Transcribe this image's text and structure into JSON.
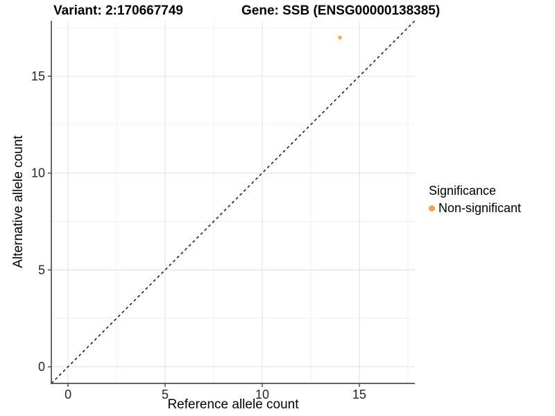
{
  "titles": {
    "variant": "Variant: 2:170667749",
    "gene": "Gene: SSB (ENSG00000138385)"
  },
  "chart_data": {
    "type": "scatter",
    "title_left": "Variant: 2:170667749",
    "title_right": "Gene: SSB (ENSG00000138385)",
    "xlabel": "Reference allele count",
    "ylabel": "Alternative allele count",
    "xlim": [
      -0.86,
      17.86
    ],
    "ylim": [
      -0.86,
      17.86
    ],
    "x_ticks": [
      0,
      5,
      10,
      15
    ],
    "y_ticks": [
      0,
      5,
      10,
      15
    ],
    "x_minor_ticks": [
      2.5,
      7.5,
      12.5,
      17.5
    ],
    "y_minor_ticks": [
      2.5,
      7.5,
      12.5,
      17.5
    ],
    "grid": "major-and-minor",
    "abline": {
      "slope": 1,
      "intercept": 0,
      "style": "dashed",
      "color": "#111111"
    },
    "series": [
      {
        "name": "Non-significant",
        "color": "#F9A242",
        "points": [
          [
            14,
            17
          ]
        ]
      }
    ],
    "legend": {
      "title": "Significance",
      "position": "right",
      "entries": [
        {
          "label": "Non-significant",
          "color": "#F9A242"
        }
      ]
    }
  }
}
